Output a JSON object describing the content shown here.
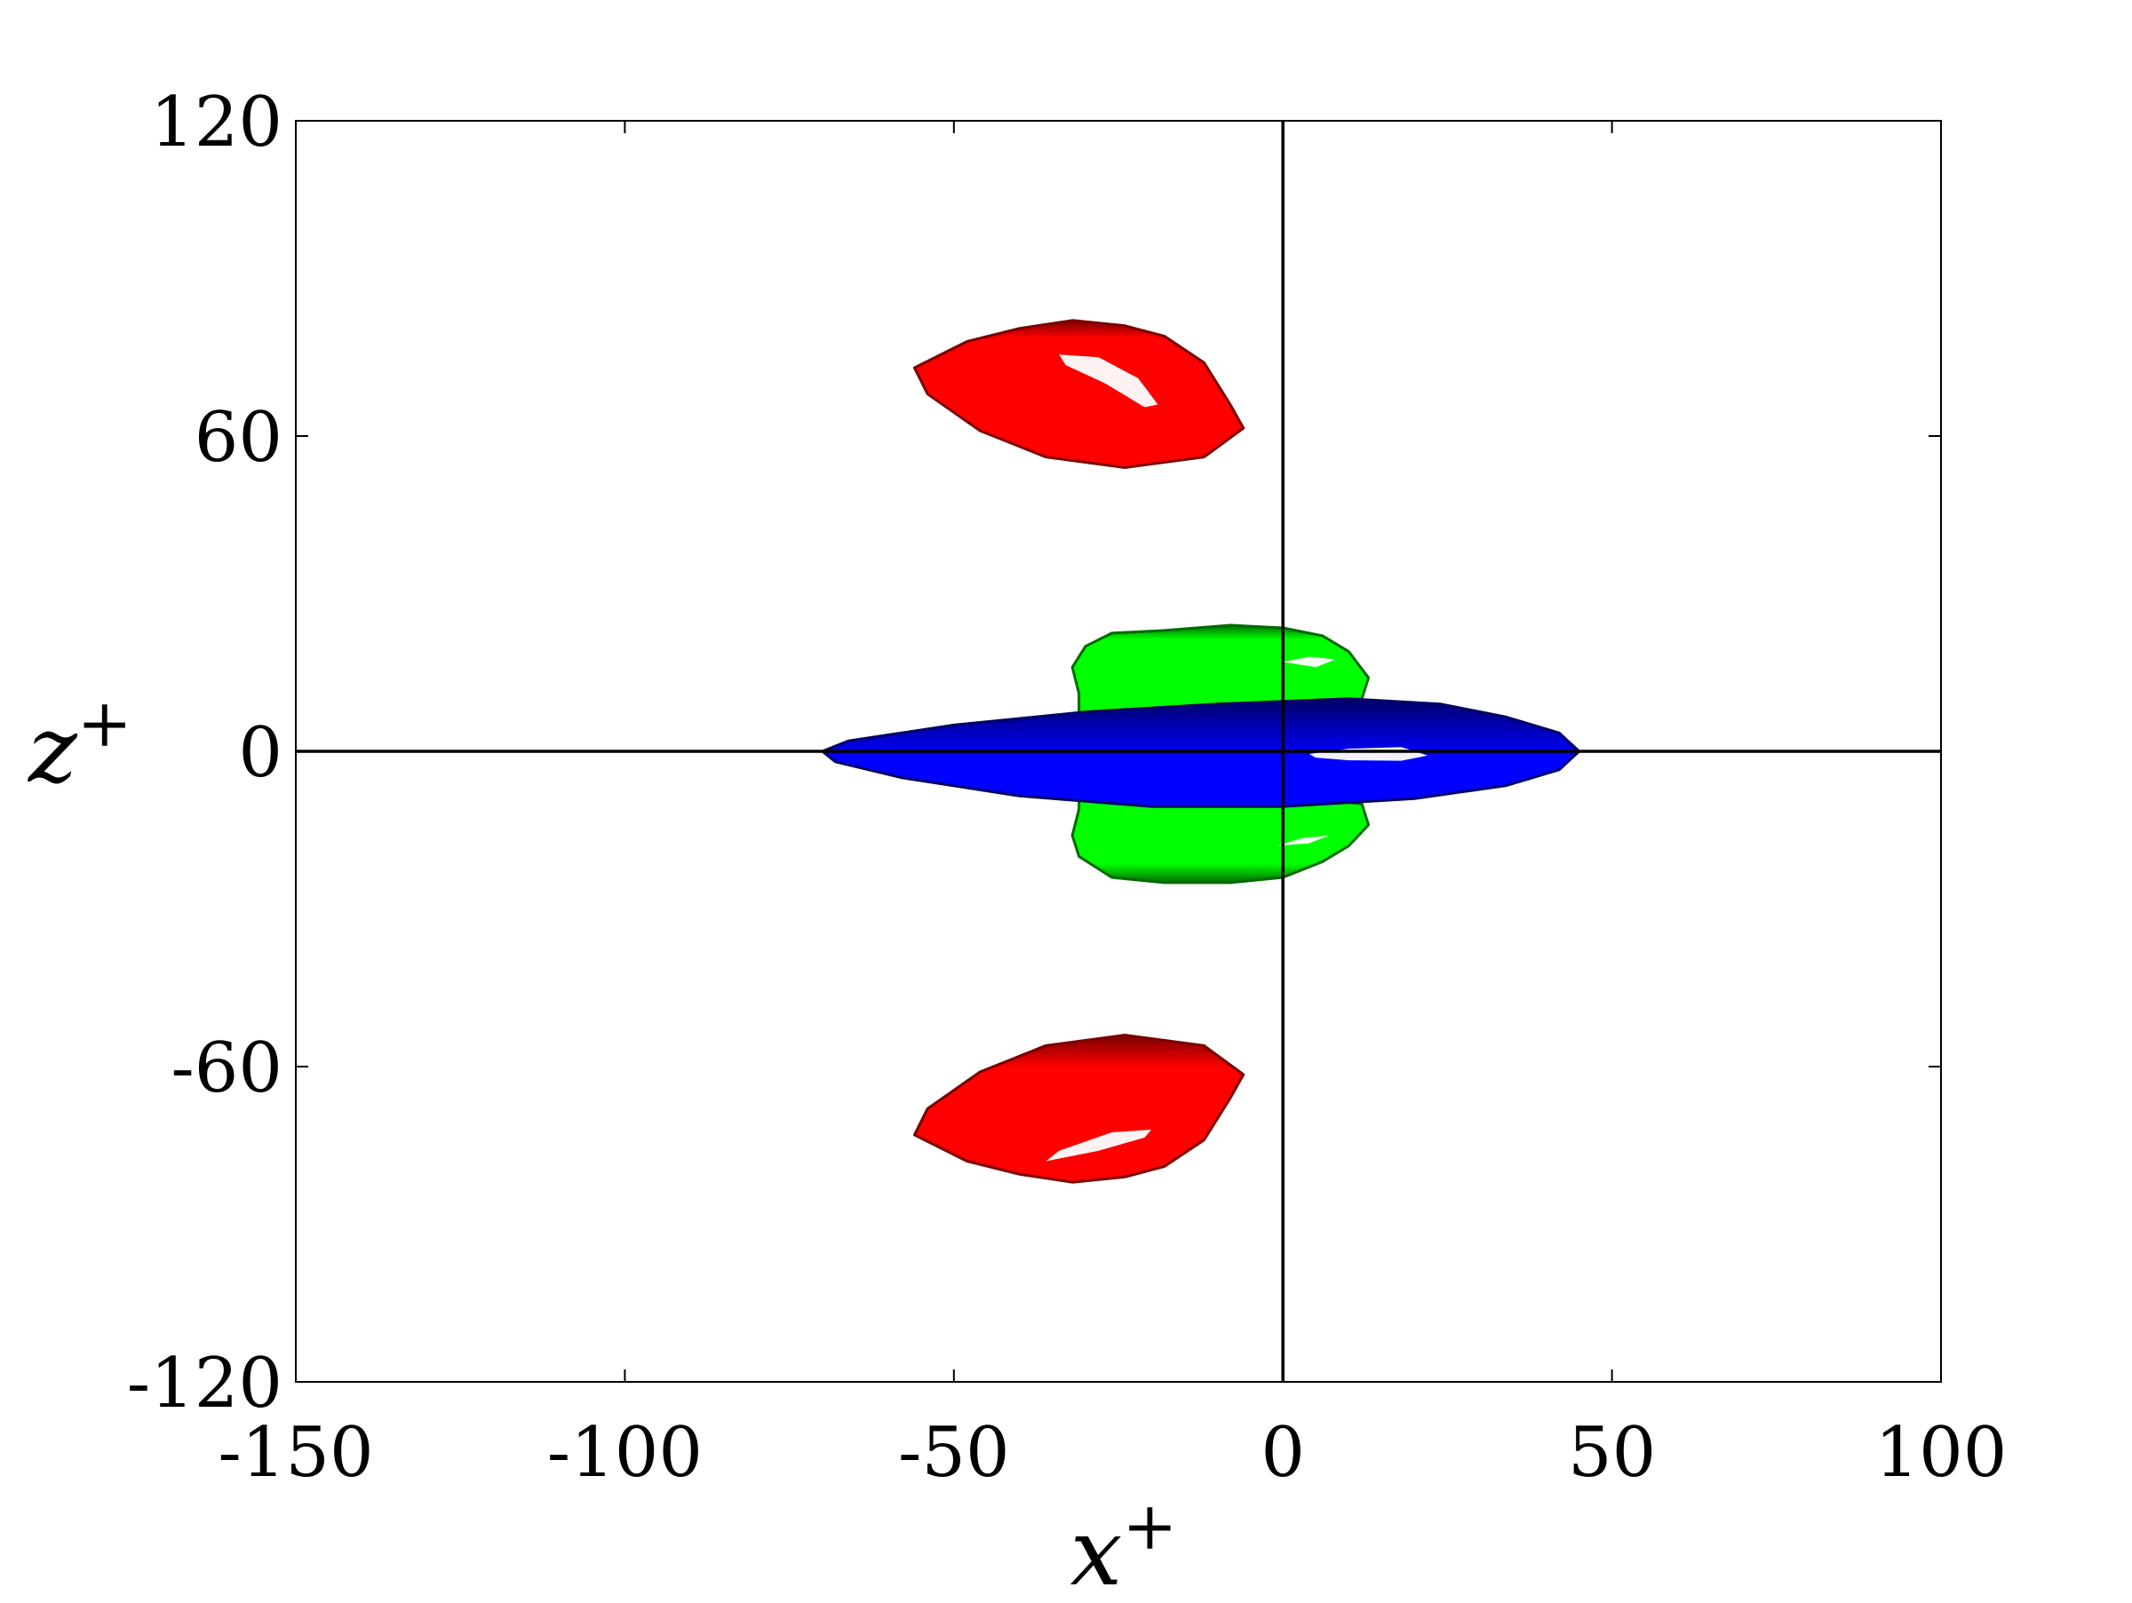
{
  "chart_data": {
    "type": "isosurface-projection",
    "xlabel": "x",
    "xlabel_superscript": "+",
    "ylabel": "z",
    "ylabel_superscript": "+",
    "xlim": [
      -150,
      100
    ],
    "ylim": [
      -120,
      120
    ],
    "xticks": [
      -150,
      -100,
      -50,
      0,
      50,
      100
    ],
    "xtick_labels": [
      "-150",
      "-100",
      "-50",
      "0",
      "50",
      "100"
    ],
    "yticks": [
      -120,
      -60,
      0,
      60,
      120
    ],
    "ytick_labels": [
      "-120",
      "-60",
      "0",
      "60",
      "120"
    ],
    "grid": false,
    "reference_lines": [
      {
        "orientation": "horizontal",
        "value": 0
      },
      {
        "orientation": "vertical",
        "value": 0
      }
    ],
    "colors": {
      "red": "#ff0000",
      "green": "#00ff00",
      "blue": "#0000ff",
      "shade_red": "#7a0000",
      "shade_green": "#006a00",
      "shade_blue": "#000066",
      "highlight": "#ffffff"
    },
    "regions": [
      {
        "name": "red-upper",
        "color": "red",
        "outline": [
          [
            -56,
            73
          ],
          [
            -48,
            78
          ],
          [
            -40,
            80.5
          ],
          [
            -32,
            82
          ],
          [
            -24,
            81
          ],
          [
            -18,
            79
          ],
          [
            -12,
            74
          ],
          [
            -8,
            66
          ],
          [
            -6,
            61.5
          ],
          [
            -12,
            56
          ],
          [
            -24,
            54
          ],
          [
            -36,
            56
          ],
          [
            -46,
            61
          ],
          [
            -54,
            68
          ]
        ],
        "highlight": [
          [
            -34,
            75.5
          ],
          [
            -28,
            75
          ],
          [
            -22,
            71
          ],
          [
            -19,
            66
          ],
          [
            -21,
            65.5
          ],
          [
            -27,
            70
          ],
          [
            -33,
            73.5
          ]
        ]
      },
      {
        "name": "red-lower",
        "color": "red",
        "outline": [
          [
            -56,
            -73
          ],
          [
            -48,
            -78
          ],
          [
            -40,
            -80.5
          ],
          [
            -32,
            -82
          ],
          [
            -24,
            -81
          ],
          [
            -18,
            -79
          ],
          [
            -12,
            -74
          ],
          [
            -8,
            -66
          ],
          [
            -6,
            -61.5
          ],
          [
            -12,
            -56
          ],
          [
            -24,
            -54
          ],
          [
            -36,
            -56
          ],
          [
            -46,
            -61
          ],
          [
            -54,
            -68
          ]
        ],
        "highlight": [
          [
            -36,
            -78
          ],
          [
            -28,
            -76
          ],
          [
            -21,
            -73.5
          ],
          [
            -20,
            -72
          ],
          [
            -26,
            -72.5
          ],
          [
            -34,
            -76
          ]
        ]
      },
      {
        "name": "green-upper",
        "color": "green",
        "outline": [
          [
            -32,
            16
          ],
          [
            -30,
            20
          ],
          [
            -26,
            22.5
          ],
          [
            -18,
            23
          ],
          [
            -8,
            24
          ],
          [
            0,
            23.5
          ],
          [
            6,
            22
          ],
          [
            10,
            19
          ],
          [
            13,
            14
          ],
          [
            12,
            10
          ],
          [
            4,
            9
          ],
          [
            -10,
            9
          ],
          [
            -22,
            8
          ],
          [
            -31,
            7
          ],
          [
            -31,
            11
          ]
        ],
        "highlight": [
          [
            0,
            17
          ],
          [
            4,
            18
          ],
          [
            8,
            17.5
          ],
          [
            5,
            16
          ]
        ]
      },
      {
        "name": "green-lower",
        "color": "green",
        "outline": [
          [
            -32,
            -16
          ],
          [
            -31,
            -20
          ],
          [
            -26,
            -24
          ],
          [
            -18,
            -25
          ],
          [
            -8,
            -25
          ],
          [
            0,
            -24
          ],
          [
            6,
            -21
          ],
          [
            10,
            -18
          ],
          [
            13,
            -14
          ],
          [
            12,
            -10
          ],
          [
            4,
            -9
          ],
          [
            -10,
            -9
          ],
          [
            -22,
            -8
          ],
          [
            -31,
            -7
          ],
          [
            -31,
            -11
          ]
        ],
        "highlight": [
          [
            -1,
            -18
          ],
          [
            4,
            -17.5
          ],
          [
            7,
            -16
          ],
          [
            3,
            -16.5
          ]
        ]
      },
      {
        "name": "blue-center",
        "color": "blue",
        "outline": [
          [
            -70,
            0
          ],
          [
            -66,
            2
          ],
          [
            -50,
            5
          ],
          [
            -30,
            7.5
          ],
          [
            -10,
            9
          ],
          [
            10,
            10
          ],
          [
            24,
            9
          ],
          [
            34,
            6.5
          ],
          [
            42,
            3.5
          ],
          [
            45,
            0
          ],
          [
            42,
            -3.5
          ],
          [
            34,
            -6.5
          ],
          [
            20,
            -9
          ],
          [
            0,
            -10.5
          ],
          [
            -20,
            -10.5
          ],
          [
            -40,
            -8.5
          ],
          [
            -58,
            -5
          ],
          [
            -68,
            -2
          ]
        ],
        "highlight": [
          [
            4,
            -0.5
          ],
          [
            10,
            0.5
          ],
          [
            18,
            0.8
          ],
          [
            22,
            -0.8
          ],
          [
            18,
            -1.8
          ],
          [
            10,
            -1.7
          ],
          [
            5,
            -1.2
          ]
        ]
      }
    ]
  }
}
